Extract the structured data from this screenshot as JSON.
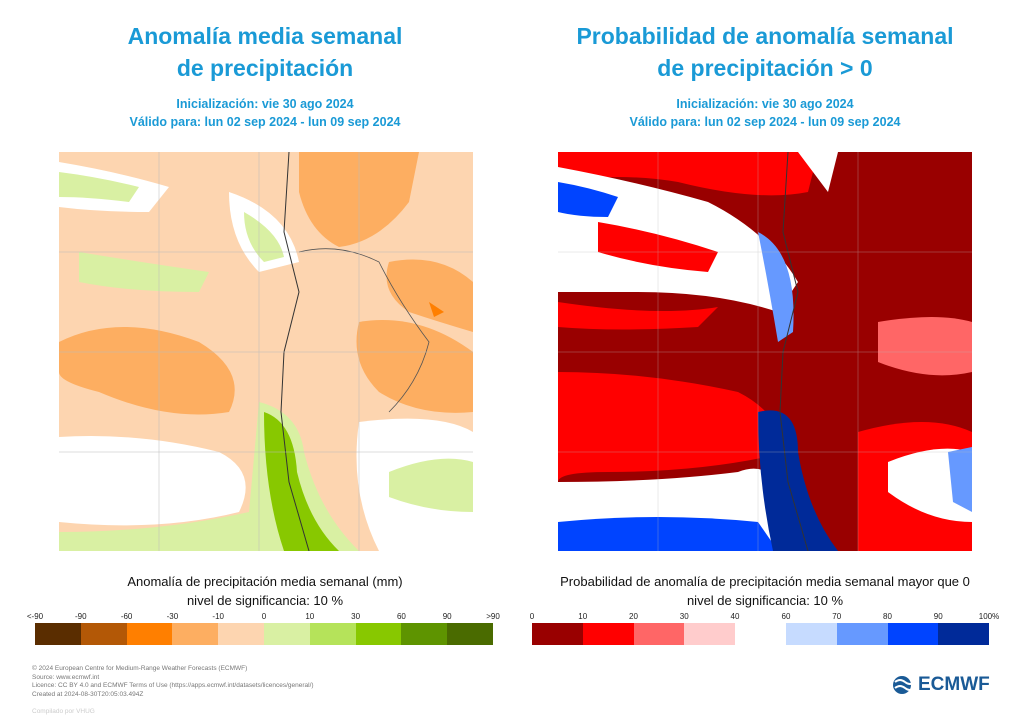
{
  "left": {
    "title_line1": "Anomalía media semanal",
    "title_line2": "de precipitación",
    "init": "Inicialización: vie 30 ago 2024",
    "valid": "Válido para: lun 02 sep 2024 - lun 09 sep 2024",
    "caption": "Anomalía de precipitación media semanal (mm)",
    "significance": "nivel de significancia: 10 %",
    "legend_ticks": [
      "<-90",
      "-90",
      "-60",
      "-30",
      "-10",
      "0",
      "10",
      "30",
      "60",
      "90",
      ">90"
    ],
    "legend_colors": [
      "#5a2d00",
      "#b35806",
      "#ff7f00",
      "#fdae61",
      "#fdd5b0",
      "#d9f0a3",
      "#b5e35a",
      "#88c800",
      "#5e9400",
      "#4a6b00"
    ]
  },
  "right": {
    "title_line1": "Probabilidad de anomalía semanal",
    "title_line2": "de precipitación > 0",
    "init": "Inicialización: vie 30 ago 2024",
    "valid": "Válido para: lun 02 sep 2024 - lun 09 sep 2024",
    "caption": "Probabilidad de anomalía de precipitación media semanal mayor que 0",
    "significance": "nivel de significancia: 10 %",
    "legend_ticks_low": [
      "0",
      "10",
      "20",
      "30",
      "40"
    ],
    "legend_ticks_high": [
      "60",
      "70",
      "80",
      "90",
      "100%"
    ],
    "legend_colors_low": [
      "#990000",
      "#ff0000",
      "#ff6666",
      "#ffcccc"
    ],
    "legend_colors_high": [
      "#c6dbff",
      "#6699ff",
      "#0044ff",
      "#002a99"
    ]
  },
  "footer": {
    "line1": "© 2024 European Centre for Medium-Range Weather Forecasts (ECMWF)",
    "line2": "Source: www.ecmwf.int",
    "line3": "Licence: CC BY 4.0 and ECMWF Terms of Use (https://apps.ecmwf.int/datasets/licences/general/)",
    "line4": "Created at 2024-08-30T20:05:03.494Z",
    "compiled": "Compilado por VHUG"
  },
  "logo": {
    "text": "ECMWF",
    "color": "#1a5a96"
  }
}
